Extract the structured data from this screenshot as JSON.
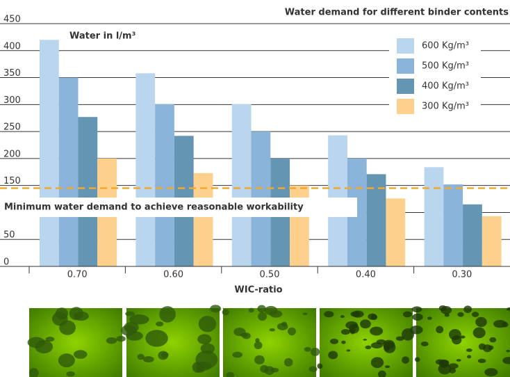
{
  "chart_data": {
    "type": "bar",
    "title": "Water demand for different binder contents",
    "y_label": "Water in l/m³",
    "x_label": "WIC-ratio",
    "categories": [
      "0.70",
      "0.60",
      "0.50",
      "0.40",
      "0.30"
    ],
    "series": [
      {
        "name": "600 Kg/m³",
        "color": "#b9d6ee",
        "values": [
          420,
          358,
          301,
          243,
          184
        ]
      },
      {
        "name": "500 Kg/m³",
        "color": "#8ab4d9",
        "values": [
          350,
          301,
          250,
          200,
          152
        ]
      },
      {
        "name": "400 Kg/m³",
        "color": "#6496b4",
        "values": [
          277,
          242,
          200,
          171,
          115
        ]
      },
      {
        "name": "300 Kg/m³",
        "color": "#fdd08e",
        "values": [
          200,
          173,
          150,
          126,
          93
        ]
      }
    ],
    "reference_line": {
      "value": 145,
      "label": "Minimum water demand to achieve reasonable workability",
      "color": "#f0a830"
    },
    "ylim": [
      0,
      450
    ],
    "yticks": [
      0,
      50,
      100,
      150,
      200,
      250,
      300,
      350,
      400,
      450
    ],
    "grid": true,
    "legend": "top-right"
  }
}
